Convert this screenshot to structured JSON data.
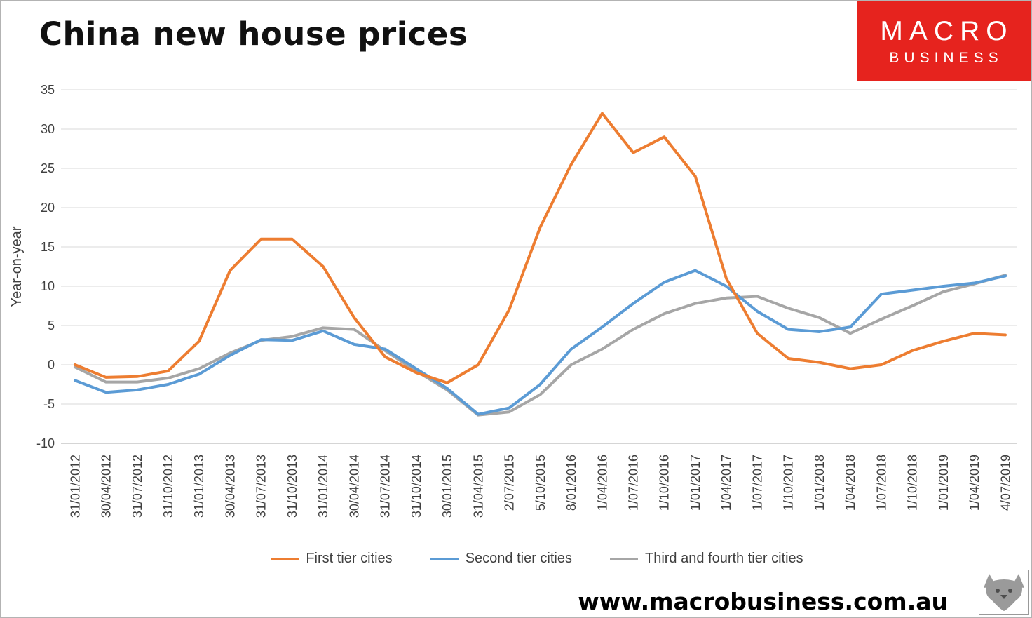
{
  "page": {
    "background": "#FFFFFF",
    "border_color": "#B3B3B3"
  },
  "header": {
    "title": "China new house prices",
    "logo": {
      "line1": "MACRO",
      "line2": "BUSINESS",
      "bg_color": "#E6231E",
      "text_color": "#FFFFFF"
    }
  },
  "footer": {
    "website": "www.macrobusiness.com.au",
    "fox_logo": "macrobusiness-fox-logo"
  },
  "chart_data": {
    "type": "line",
    "title": "China new house prices",
    "xlabel": "",
    "ylabel": "Year-on-year",
    "ylim": [
      -10,
      35
    ],
    "ytick_step": 5,
    "grid": true,
    "grid_color": "#D9D9D9",
    "axis_line_color": "#ABABAB",
    "axis_text_color": "#404040",
    "legend_position": "bottom",
    "categories": [
      "31/01/2012",
      "30/04/2012",
      "31/07/2012",
      "31/10/2012",
      "31/01/2013",
      "30/04/2013",
      "31/07/2013",
      "31/10/2013",
      "31/01/2014",
      "30/04/2014",
      "31/07/2014",
      "31/10/2014",
      "30/01/2015",
      "31/04/2015",
      "2/07/2015",
      "5/10/2015",
      "8/01/2016",
      "1/04/2016",
      "1/07/2016",
      "1/10/2016",
      "1/01/2017",
      "1/04/2017",
      "1/07/2017",
      "1/10/2017",
      "1/01/2018",
      "1/04/2018",
      "1/07/2018",
      "1/10/2018",
      "1/01/2019",
      "1/04/2019",
      "4/07/2019"
    ],
    "series": [
      {
        "name": "First tier cities",
        "color": "#ED7D31",
        "values": [
          0,
          -1.6,
          -1.5,
          -0.8,
          3,
          12,
          16,
          16,
          12.5,
          6,
          1,
          -1,
          -2.3,
          0,
          7,
          17.5,
          25.5,
          32,
          27,
          29,
          24,
          11,
          4,
          0.8,
          0.3,
          -0.5,
          0,
          1.8,
          3,
          4,
          3.8
        ]
      },
      {
        "name": "Second tier cities",
        "color": "#5B9BD5",
        "values": [
          -2,
          -3.5,
          -3.2,
          -2.5,
          -1.2,
          1.2,
          3.2,
          3.1,
          4.3,
          2.6,
          2,
          -0.5,
          -3,
          -6.3,
          -5.5,
          -2.5,
          2,
          4.8,
          7.8,
          10.5,
          12,
          10,
          6.8,
          4.5,
          4.2,
          4.8,
          9,
          9.5,
          10,
          10.4,
          11.3
        ]
      },
      {
        "name": "Third and fourth tier cities",
        "color": "#A6A6A6",
        "values": [
          -0.3,
          -2.2,
          -2.2,
          -1.7,
          -0.5,
          1.5,
          3.1,
          3.6,
          4.7,
          4.5,
          1.8,
          -0.8,
          -3.2,
          -6.4,
          -6,
          -3.8,
          0,
          2,
          4.5,
          6.5,
          7.8,
          8.5,
          8.7,
          7.2,
          6,
          4,
          5.8,
          7.5,
          9.3,
          10.3,
          11.4
        ]
      }
    ]
  }
}
